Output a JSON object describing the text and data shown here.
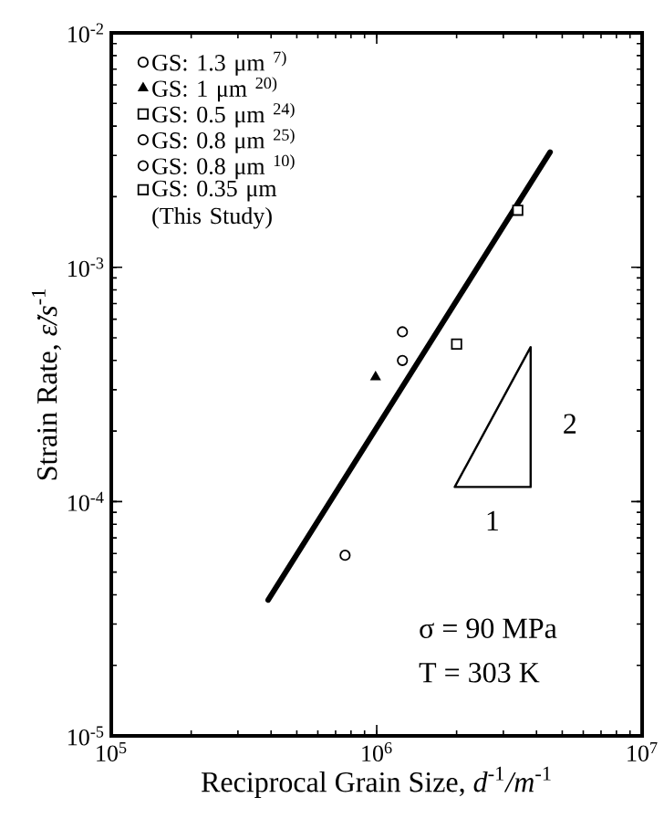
{
  "chart_data": {
    "type": "scatter",
    "xlabel": "Reciprocal Grain Size, *d*$^{-1}$*/m*$^{-1}$",
    "ylabel": "Strain Rate, *ε̇/s*$^{-1}$",
    "log": "xy",
    "grid": false,
    "legend": "top left",
    "xlim": [
      100000,
      10000000
    ],
    "xticks": [
      {
        "value": 100000,
        "label": "10$^{5}$"
      },
      {
        "value": 1000000,
        "label": "10$^{6}$"
      },
      {
        "value": 10000000,
        "label": "10$^{7}$"
      }
    ],
    "ylim": [
      1e-05,
      0.01
    ],
    "yticks": [
      {
        "value": 1e-05,
        "label": "10$^{-5}$"
      },
      {
        "value": 0.0001,
        "label": "10$^{-4}$"
      },
      {
        "value": 0.001,
        "label": "10$^{-3}$"
      },
      {
        "value": 0.01,
        "label": "10$^{-2}$"
      }
    ],
    "series": [
      {
        "name": "GS: 1.3 μm $^{7)}$",
        "color": "#000000",
        "marker": "circle",
        "x": [
          760000
        ],
        "values": [
          5.9e-05
        ]
      },
      {
        "name": "GS: 1 μm $^{20)}$",
        "color": "#000000",
        "marker": "triangle",
        "x": [
          990000
        ],
        "values": [
          0.00034
        ]
      },
      {
        "name": "GS: 0.5 μm $^{24)}$",
        "color": "#000000",
        "marker": "square",
        "x": [
          2000000
        ],
        "values": [
          0.00047
        ]
      },
      {
        "name": "GS: 0.8 μm $^{25)}$",
        "color": "#000000",
        "marker": "circle",
        "x": [
          1250000
        ],
        "values": [
          0.00053
        ]
      },
      {
        "name": "GS: 0.8 μm $^{10)}$",
        "color": "#000000",
        "marker": "circle",
        "x": [
          1250000
        ],
        "values": [
          0.0004
        ]
      },
      {
        "name": "GS: 0.35 μm (This Study)",
        "color": "#000000",
        "marker": "square",
        "x": [
          3400000
        ],
        "values": [
          0.00175
        ]
      },
      {
        "type": "line",
        "color": "#000000",
        "marker": "none",
        "line_style": "solid",
        "x": [
          390000,
          4500000
        ],
        "values": [
          3.8e-05,
          0.0031
        ]
      }
    ],
    "annotations": [
      "2",
      "1",
      "σ = 90 MPa",
      "T = 303 K"
    ]
  }
}
